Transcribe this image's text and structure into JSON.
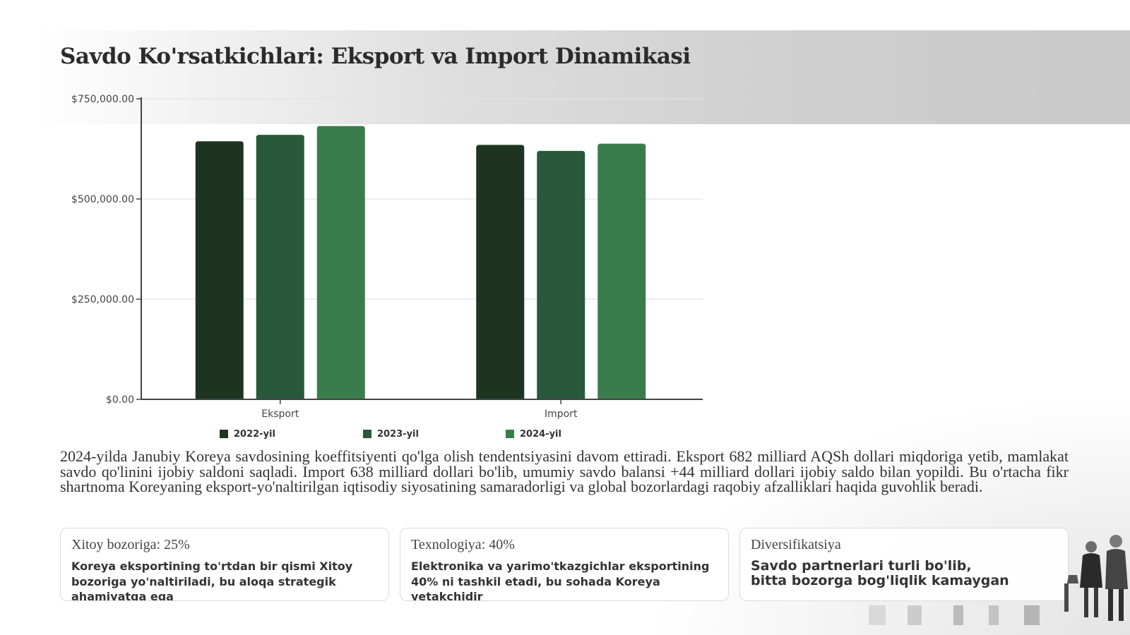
{
  "title": "Savdo Ko'rsatkichlari: Eksport va Import Dinamikasi",
  "chart_data": {
    "type": "bar",
    "categories": [
      "Eksport",
      "Import"
    ],
    "series": [
      {
        "name": "2022-yil",
        "values": [
          644000,
          635000
        ],
        "color": "#1d3520"
      },
      {
        "name": "2023-yil",
        "values": [
          660000,
          620000
        ],
        "color": "#29583a"
      },
      {
        "name": "2024-yil",
        "values": [
          682000,
          638000
        ],
        "color": "#3a7d4c"
      }
    ],
    "ylim": [
      0,
      750000
    ],
    "yticks": [
      0,
      250000,
      500000,
      750000
    ],
    "ytick_labels": [
      "$0.00",
      "$250,000.00",
      "$500,000.00",
      "$750,000.00"
    ],
    "grid": true,
    "legend_position": "bottom"
  },
  "summary": "2024-yilda Janubiy Koreya savdosining koeffitsiyenti qo'lga olish tendentsiyasini davom ettiradi. Eksport 682 milliard AQSh dollari miqdoriga yetib, mamlakat savdo qo'linini ijobiy saldoni saqladi. Import 638 milliard dollari bo'lib, umumiy savdo balansi +44 milliard dollari ijobiy saldo bilan yopildi. Bu o'rtacha fikr shartnoma Koreyaning eksport-yo'naltirilgan iqtisodiy siyosatining samaradorligi va global bozorlardagi raqobiy afzalliklari haqida guvohlik beradi.",
  "cards": [
    {
      "title": "Xitoy bozoriga: 25%",
      "text": "Koreya eksportining to'rtdan bir qismi Xitoy bozoriga yo'naltiriladi, bu aloqa strategik ahamiyatga ega"
    },
    {
      "title": "Texnologiya: 40%",
      "text": "Elektronika va yarimo'tkazgichlar eksportining 40% ni tashkil etadi, bu sohada Koreya yetakchidir"
    },
    {
      "title": "Diversifikatsiya",
      "text_lines": [
        "Savdo partnerlari turli bo'lib,",
        "bitta bozorga bog'liqlik kamaygan"
      ]
    }
  ]
}
